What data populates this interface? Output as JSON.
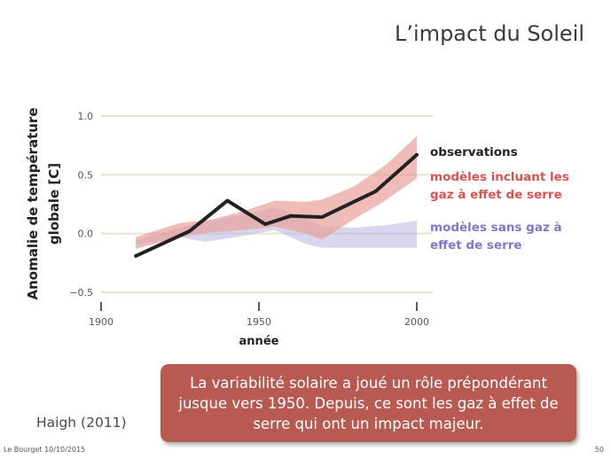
{
  "slide": {
    "title": "L’impact du Soleil",
    "source": "Haigh (2011)",
    "footer": "Le Bourget 10/10/2015",
    "page_number": "50",
    "callout": "La variabilité solaire a joué un rôle prépondérant jusque vers 1950. Depuis, ce sont les gaz à effet de serre qui ont un impact majeur."
  },
  "colors": {
    "observations": "#222222",
    "ghg_models": "#d9534f",
    "ghg_band": "#e8a09a",
    "no_ghg_models": "#7b79c9",
    "no_ghg_band": "#b7b4e0",
    "grid": "#e6e3cf",
    "callout_bg": "#b85a52"
  },
  "chart_data": {
    "type": "line",
    "title": "",
    "xlabel": "année",
    "ylabel": [
      "Anomalie de température",
      "globale [C]"
    ],
    "xlim": [
      1900,
      2003
    ],
    "ylim": [
      -0.5,
      1.0
    ],
    "x_ticks": [
      1900,
      1950,
      2000
    ],
    "y_ticks": [
      {
        "value": 1.0,
        "label": "1.0"
      },
      {
        "value": 0.5,
        "label": "0.5"
      },
      {
        "value": 0.0,
        "label": "0.0"
      },
      {
        "value": -0.5,
        "label": "−0.5"
      }
    ],
    "grid": true,
    "legend_position": "right",
    "series": [
      {
        "name": "observations",
        "kind": "line",
        "x": [
          1911,
          1928,
          1940,
          1952,
          1960,
          1970,
          1987,
          2000
        ],
        "y": [
          -0.19,
          0.02,
          0.28,
          0.08,
          0.15,
          0.14,
          0.36,
          0.67
        ]
      },
      {
        "name": "modèles incluant les gaz à effet de serre",
        "kind": "band",
        "x": [
          1911,
          1925,
          1935,
          1945,
          1955,
          1965,
          1970,
          1980,
          1990,
          2000
        ],
        "upper": [
          -0.03,
          0.09,
          0.12,
          0.19,
          0.28,
          0.27,
          0.29,
          0.4,
          0.58,
          0.83
        ],
        "lower": [
          -0.13,
          -0.03,
          0.01,
          0.03,
          0.06,
          0.0,
          -0.05,
          0.12,
          0.28,
          0.47
        ]
      },
      {
        "name": "modèles sans gaz à effet de serre",
        "kind": "band",
        "x": [
          1911,
          1925,
          1933,
          1945,
          1955,
          1965,
          1970,
          1980,
          1990,
          2000
        ],
        "upper": [
          -0.06,
          0.05,
          0.1,
          0.16,
          0.22,
          0.13,
          0.06,
          0.05,
          0.07,
          0.11
        ],
        "lower": [
          -0.1,
          -0.03,
          -0.07,
          -0.02,
          0.03,
          -0.09,
          -0.12,
          -0.12,
          -0.12,
          -0.12
        ]
      }
    ],
    "legend": [
      {
        "lines": [
          "observations"
        ],
        "color": "#222222"
      },
      {
        "lines": [
          "modèles incluant les",
          "gaz à effet de serre"
        ],
        "color": "#d9534f"
      },
      {
        "lines": [
          "modèles sans gaz à",
          "effet de serre"
        ],
        "color": "#7b79c9"
      }
    ]
  }
}
